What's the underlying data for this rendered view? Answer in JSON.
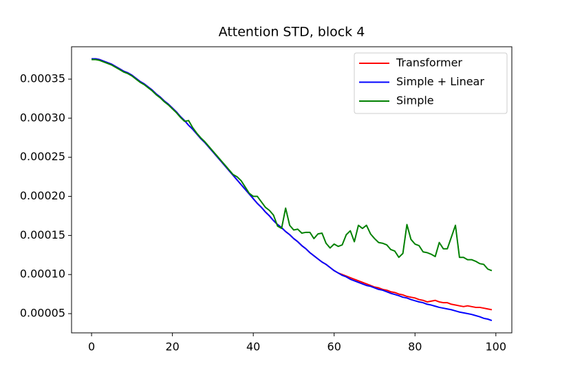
{
  "chart_data": {
    "type": "line",
    "title": "Attention STD, block 4",
    "x": [
      0,
      1,
      2,
      3,
      4,
      5,
      6,
      7,
      8,
      9,
      10,
      11,
      12,
      13,
      14,
      15,
      16,
      17,
      18,
      19,
      20,
      21,
      22,
      23,
      24,
      25,
      26,
      27,
      28,
      29,
      30,
      31,
      32,
      33,
      34,
      35,
      36,
      37,
      38,
      39,
      40,
      41,
      42,
      43,
      44,
      45,
      46,
      47,
      48,
      49,
      50,
      51,
      52,
      53,
      54,
      55,
      56,
      57,
      58,
      59,
      60,
      61,
      62,
      63,
      64,
      65,
      66,
      67,
      68,
      69,
      70,
      71,
      72,
      73,
      74,
      75,
      76,
      77,
      78,
      79,
      80,
      81,
      82,
      83,
      84,
      85,
      86,
      87,
      88,
      89,
      90,
      91,
      92,
      93,
      94,
      95,
      96,
      97,
      98,
      99
    ],
    "xlim": [
      -4.95,
      103.95
    ],
    "xticks": [
      0,
      20,
      40,
      60,
      80,
      100
    ],
    "ylim": [
      2.54e-05,
      0.0003914
    ],
    "yticks": [
      {
        "value": 5e-05,
        "label": "0.00005"
      },
      {
        "value": 0.0001,
        "label": "0.00010"
      },
      {
        "value": 0.00015,
        "label": "0.00015"
      },
      {
        "value": 0.0002,
        "label": "0.00020"
      },
      {
        "value": 0.00025,
        "label": "0.00025"
      },
      {
        "value": 0.0003,
        "label": "0.00030"
      },
      {
        "value": 0.00035,
        "label": "0.00035"
      }
    ],
    "legend": "upper right",
    "series": [
      {
        "name": "Transformer",
        "color": "#ff0000",
        "values": [
          0.000376,
          0.000376,
          0.000375,
          0.000373,
          0.000371,
          0.000369,
          0.000366,
          0.000363,
          0.00036,
          0.000358,
          0.000355,
          0.000351,
          0.000347,
          0.000344,
          0.00034,
          0.000336,
          0.000331,
          0.000327,
          0.000322,
          0.000318,
          0.000313,
          0.000308,
          0.000302,
          0.000297,
          0.000291,
          0.000286,
          0.00028,
          0.000274,
          0.000269,
          0.000263,
          0.000257,
          0.000251,
          0.000245,
          0.000239,
          0.000233,
          0.000227,
          0.000221,
          0.000215,
          0.000209,
          0.000203,
          0.000197,
          0.000191,
          0.000186,
          0.00018,
          0.000175,
          0.000169,
          0.000164,
          0.00016,
          0.000155,
          0.000151,
          0.000146,
          0.000142,
          0.000137,
          0.000133,
          0.000128,
          0.000124,
          0.00012,
          0.000116,
          0.000113,
          0.000109,
          0.000105,
          0.000102,
          0.0001,
          9.8e-05,
          9.6e-05,
          9.4e-05,
          9.2e-05,
          9e-05,
          8.8e-05,
          8.6e-05,
          8.4e-05,
          8.3e-05,
          8.1e-05,
          8e-05,
          7.8e-05,
          7.7e-05,
          7.5e-05,
          7.4e-05,
          7.2e-05,
          7.1e-05,
          7e-05,
          6.8e-05,
          6.7e-05,
          6.5e-05,
          6.6e-05,
          6.7e-05,
          6.5e-05,
          6.4e-05,
          6.4e-05,
          6.2e-05,
          6.1e-05,
          6e-05,
          5.9e-05,
          6e-05,
          5.9e-05,
          5.8e-05,
          5.8e-05,
          5.7e-05,
          5.6e-05,
          5.5e-05
        ]
      },
      {
        "name": "Simple + Linear",
        "color": "#0000ff",
        "values": [
          0.000376,
          0.000376,
          0.000375,
          0.000373,
          0.000371,
          0.000369,
          0.000366,
          0.000363,
          0.00036,
          0.000358,
          0.000355,
          0.000351,
          0.000347,
          0.000344,
          0.00034,
          0.000336,
          0.000331,
          0.000327,
          0.000322,
          0.000318,
          0.000313,
          0.000308,
          0.000302,
          0.000297,
          0.000291,
          0.000286,
          0.00028,
          0.000274,
          0.000269,
          0.000263,
          0.000257,
          0.000251,
          0.000245,
          0.000239,
          0.000233,
          0.000227,
          0.000221,
          0.000215,
          0.000209,
          0.000203,
          0.000197,
          0.000191,
          0.000186,
          0.00018,
          0.000175,
          0.000169,
          0.000164,
          0.00016,
          0.000155,
          0.000151,
          0.000146,
          0.000142,
          0.000137,
          0.000133,
          0.000128,
          0.000124,
          0.00012,
          0.000116,
          0.000113,
          0.000109,
          0.000105,
          0.000102,
          9.9e-05,
          9.7e-05,
          9.4e-05,
          9.2e-05,
          9e-05,
          8.8e-05,
          8.6e-05,
          8.5e-05,
          8.3e-05,
          8.1e-05,
          8e-05,
          7.8e-05,
          7.6e-05,
          7.45e-05,
          7.3e-05,
          7.1e-05,
          7e-05,
          6.8e-05,
          6.65e-05,
          6.5e-05,
          6.4e-05,
          6.2e-05,
          6.1e-05,
          5.95e-05,
          5.8e-05,
          5.7e-05,
          5.6e-05,
          5.5e-05,
          5.35e-05,
          5.2e-05,
          5.1e-05,
          5e-05,
          4.9e-05,
          4.75e-05,
          4.6e-05,
          4.4e-05,
          4.3e-05,
          4.12e-05
        ]
      },
      {
        "name": "Simple",
        "color": "#008000",
        "values": [
          0.000375,
          0.000375,
          0.000374,
          0.000372,
          0.00037,
          0.000368,
          0.000365,
          0.000362,
          0.000359,
          0.000357,
          0.000354,
          0.00035,
          0.000346,
          0.000343,
          0.000339,
          0.000335,
          0.00033,
          0.000326,
          0.000321,
          0.000317,
          0.000312,
          0.000307,
          0.000301,
          0.000296,
          0.000297,
          0.000288,
          0.000281,
          0.000275,
          0.00027,
          0.000264,
          0.000258,
          0.000252,
          0.000246,
          0.00024,
          0.000234,
          0.000228,
          0.000225,
          0.00022,
          0.000212,
          0.000204,
          0.0002,
          0.0002,
          0.000193,
          0.000186,
          0.000182,
          0.000176,
          0.000162,
          0.000159,
          0.000185,
          0.000163,
          0.000157,
          0.000158,
          0.000153,
          0.000154,
          0.000154,
          0.000146,
          0.000152,
          0.000153,
          0.00014,
          0.000134,
          0.000139,
          0.000136,
          0.000138,
          0.000151,
          0.000156,
          0.000142,
          0.000163,
          0.000159,
          0.000163,
          0.000152,
          0.000146,
          0.000141,
          0.00014,
          0.000138,
          0.000132,
          0.00013,
          0.000122,
          0.000127,
          0.000164,
          0.000145,
          0.000139,
          0.000137,
          0.000129,
          0.000128,
          0.000126,
          0.000123,
          0.000141,
          0.000133,
          0.000133,
          0.000148,
          0.000163,
          0.000122,
          0.000122,
          0.000119,
          0.000119,
          0.000117,
          0.000114,
          0.000113,
          0.000107,
          0.000105
        ]
      }
    ]
  }
}
